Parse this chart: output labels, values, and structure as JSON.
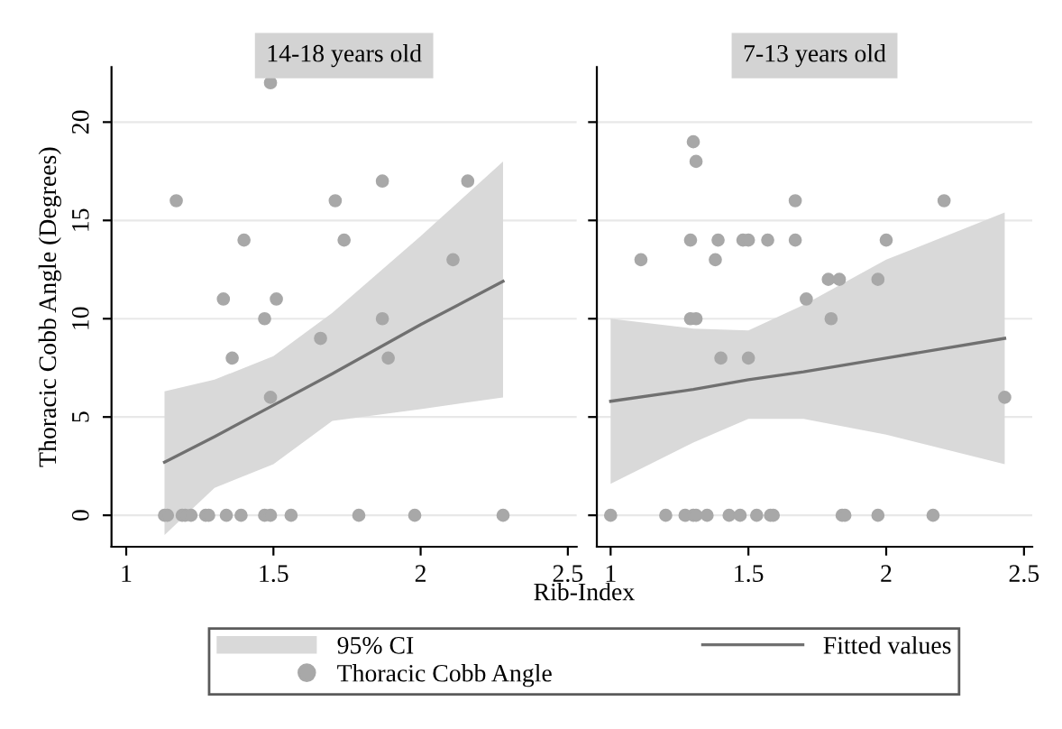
{
  "chart_data": [
    {
      "type": "scatter",
      "title": "14-18 years old",
      "ylabel": "Thoracic Cobb Angle (Degrees)",
      "annotations": [
        "95% CI"
      ],
      "xlim": [
        0.95,
        2.53
      ],
      "ylim": [
        -1.6,
        22.8
      ],
      "xticks": [
        1,
        1.5,
        2,
        2.5
      ],
      "yticks": [
        0,
        5,
        10,
        15,
        20
      ],
      "grid": "y",
      "legend": "bottom",
      "series": [
        {
          "name": "Fitted values",
          "type": "line",
          "color": "#707070",
          "x": [
            1.13,
            1.3,
            1.5,
            1.7,
            2.0,
            2.28
          ],
          "values": [
            2.7,
            4.0,
            5.6,
            7.2,
            9.7,
            11.9
          ],
          "lower": [
            -1.0,
            1.4,
            2.6,
            4.8,
            5.4,
            6.0
          ],
          "upper": [
            6.3,
            6.9,
            8.1,
            10.3,
            14.2,
            18.0
          ]
        },
        {
          "name": "Thoracic Cobb Angle",
          "marker": "circle",
          "color": "#a8a8a8",
          "x": [
            1.49,
            1.17,
            1.71,
            1.87,
            2.16,
            1.4,
            1.74,
            2.11,
            1.33,
            1.51,
            1.47,
            1.87,
            1.66,
            1.36,
            1.89,
            1.49,
            1.13,
            1.14,
            1.19,
            1.2,
            1.22,
            1.27,
            1.28,
            1.34,
            1.39,
            1.47,
            1.49,
            1.56,
            1.79,
            1.98,
            2.28
          ],
          "values": [
            22,
            16,
            16,
            17,
            17,
            14,
            14,
            13,
            11,
            11,
            10,
            10,
            9,
            8,
            8,
            6,
            0,
            0,
            0,
            0,
            0,
            0,
            0,
            0,
            0,
            0,
            0,
            0,
            0,
            0,
            0
          ]
        }
      ]
    },
    {
      "type": "scatter",
      "title": "7-13 years old",
      "xlabel": "Rib-Index",
      "xlim": [
        0.95,
        2.53
      ],
      "ylim": [
        -1.6,
        22.8
      ],
      "xticks": [
        1,
        1.5,
        2,
        2.5
      ],
      "yticks": [
        0,
        5,
        10,
        15,
        20
      ],
      "grid": "y",
      "tick_labels": "x",
      "series": [
        {
          "type": "line",
          "color": "#707070",
          "x": [
            1.0,
            1.3,
            1.5,
            1.7,
            2.0,
            2.43
          ],
          "values": [
            5.8,
            6.4,
            6.9,
            7.3,
            8.0,
            9.0
          ],
          "lower": [
            1.6,
            3.7,
            4.9,
            4.9,
            4.1,
            2.6
          ],
          "upper": [
            10.0,
            9.5,
            9.4,
            10.7,
            13.0,
            15.4
          ]
        },
        {
          "marker": "circle",
          "color": "#a8a8a8",
          "x": [
            1.3,
            1.31,
            1.67,
            2.21,
            1.29,
            1.39,
            1.48,
            1.5,
            1.57,
            1.67,
            2.0,
            1.11,
            1.38,
            1.79,
            1.83,
            1.97,
            1.71,
            1.29,
            1.31,
            1.8,
            1.4,
            1.5,
            2.43,
            1.0,
            1.2,
            1.27,
            1.3,
            1.31,
            1.35,
            1.43,
            1.47,
            1.53,
            1.58,
            1.59,
            1.84,
            1.85,
            1.97,
            2.17
          ],
          "values": [
            19,
            18,
            16,
            16,
            14,
            14,
            14,
            14,
            14,
            14,
            14,
            13,
            13,
            12,
            12,
            12,
            11,
            10,
            10,
            10,
            8,
            8,
            6,
            0,
            0,
            0,
            0,
            0,
            0,
            0,
            0,
            0,
            0,
            0,
            0,
            0,
            0,
            0
          ]
        }
      ]
    }
  ]
}
